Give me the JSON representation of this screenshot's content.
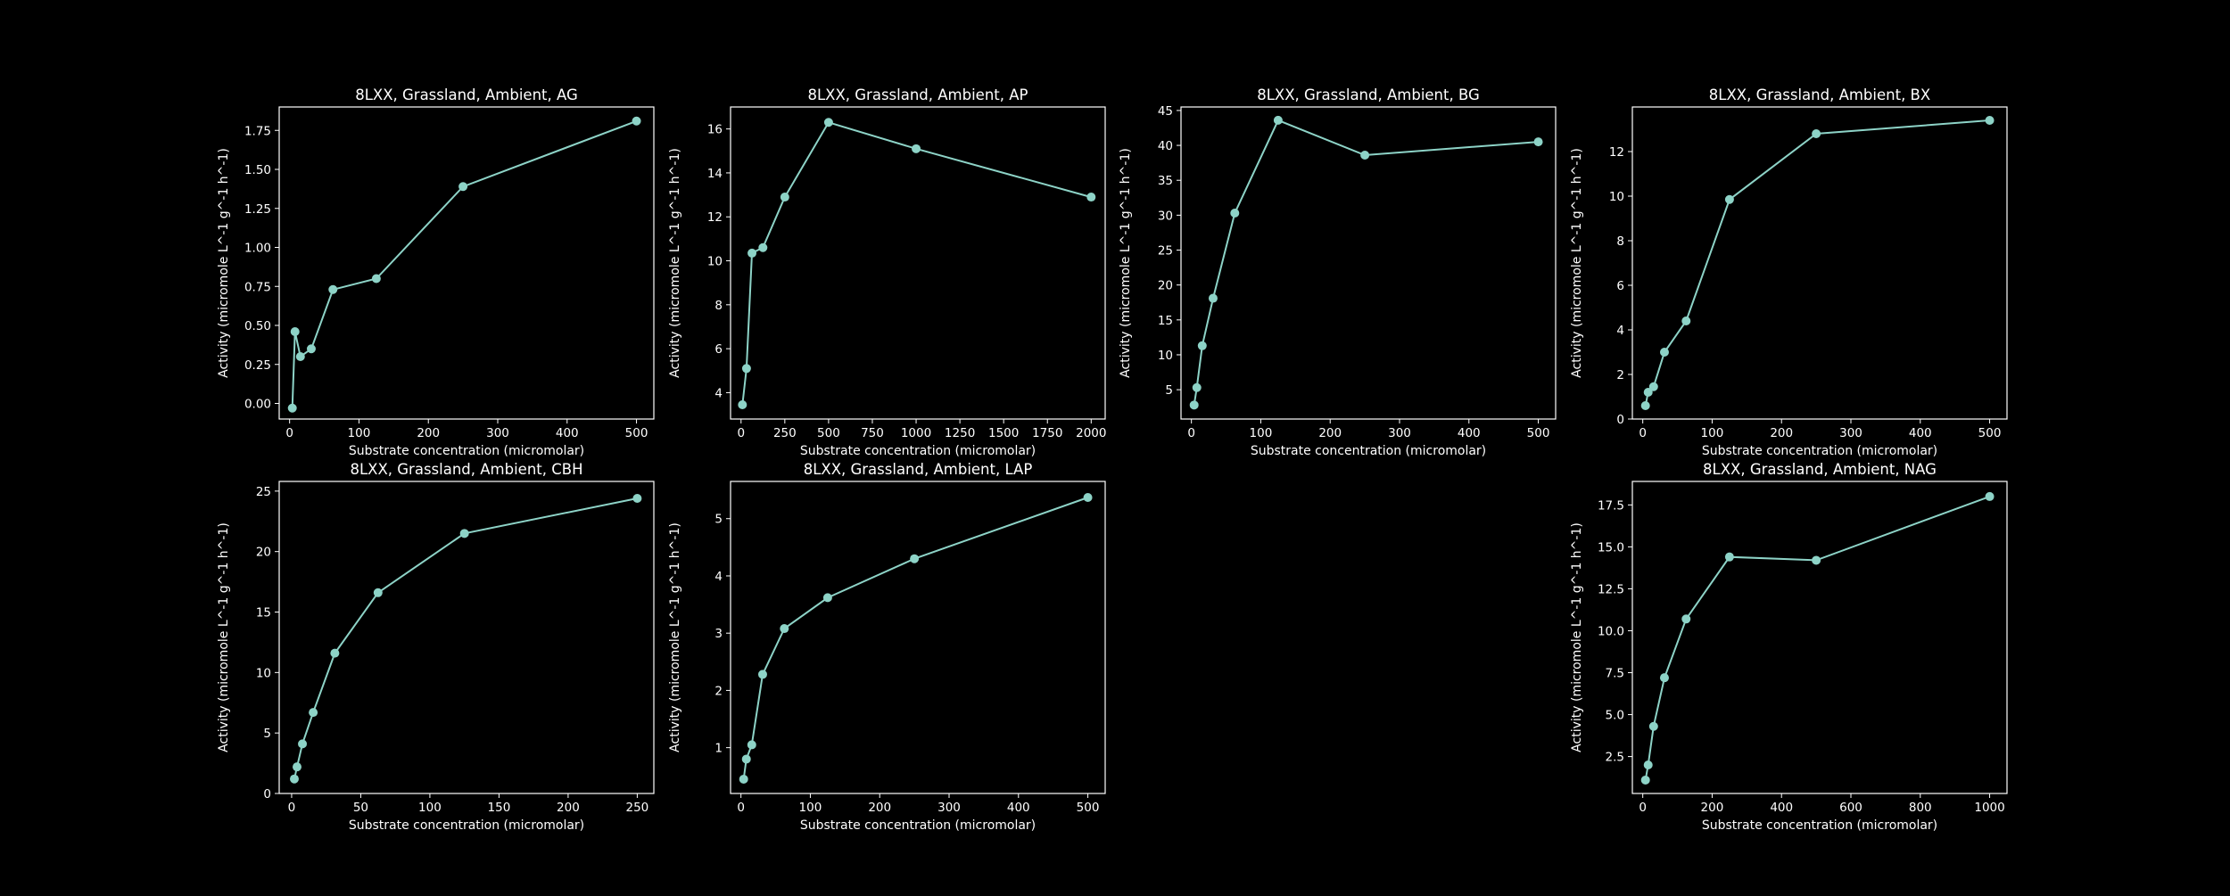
{
  "figure": {
    "background": "#000000",
    "line_color": "#8dd3c7",
    "text_color": "#ffffff"
  },
  "chart_data": [
    {
      "type": "line",
      "title": "8LXX, Grassland, Ambient, AG",
      "xlabel": "Substrate concentration (micromolar)",
      "ylabel": "Activity (micromole L^-1 g^-1 h^-1)",
      "xlim": [
        -15,
        525
      ],
      "ylim": [
        -0.1,
        1.9
      ],
      "xticks": [
        0,
        100,
        200,
        300,
        400,
        500
      ],
      "yticks": [
        0.0,
        0.25,
        0.5,
        0.75,
        1.0,
        1.25,
        1.5,
        1.75
      ],
      "ytick_labels": [
        "0.00",
        "0.25",
        "0.50",
        "0.75",
        "1.00",
        "1.25",
        "1.50",
        "1.75"
      ],
      "x": [
        3.9,
        7.8,
        15.6,
        31.25,
        62.5,
        125,
        250,
        500
      ],
      "y": [
        -0.03,
        0.46,
        0.3,
        0.35,
        0.73,
        0.8,
        1.39,
        1.81
      ]
    },
    {
      "type": "line",
      "title": "8LXX, Grassland, Ambient, AP",
      "xlabel": "Substrate concentration (micromolar)",
      "ylabel": "Activity (micromole L^-1 g^-1 h^-1)",
      "xlim": [
        -60,
        2080
      ],
      "ylim": [
        2.8,
        17.0
      ],
      "xticks": [
        0,
        250,
        500,
        750,
        1000,
        1250,
        1500,
        1750,
        2000
      ],
      "yticks": [
        4,
        6,
        8,
        10,
        12,
        14,
        16
      ],
      "x": [
        7.8,
        31.25,
        62.5,
        125,
        250,
        500,
        1000,
        2000
      ],
      "y": [
        3.45,
        5.1,
        10.35,
        10.6,
        12.9,
        16.3,
        15.1,
        12.9
      ]
    },
    {
      "type": "line",
      "title": "8LXX, Grassland, Ambient, BG",
      "xlabel": "Substrate concentration (micromolar)",
      "ylabel": "Activity (micromole L^-1 g^-1 h^-1)",
      "xlim": [
        -15,
        525
      ],
      "ylim": [
        0.8,
        45.5
      ],
      "xticks": [
        0,
        100,
        200,
        300,
        400,
        500
      ],
      "yticks": [
        5,
        10,
        15,
        20,
        25,
        30,
        35,
        40,
        45
      ],
      "x": [
        3.9,
        7.8,
        15.6,
        31.25,
        62.5,
        125,
        250,
        500
      ],
      "y": [
        2.8,
        5.3,
        11.3,
        18.1,
        30.3,
        43.6,
        38.6,
        40.5
      ]
    },
    {
      "type": "line",
      "title": "8LXX, Grassland, Ambient, BX",
      "xlabel": "Substrate concentration (micromolar)",
      "ylabel": "Activity (micromole L^-1 g^-1 h^-1)",
      "xlim": [
        -15,
        525
      ],
      "ylim": [
        0,
        14.0
      ],
      "xticks": [
        0,
        100,
        200,
        300,
        400,
        500
      ],
      "yticks": [
        0,
        2,
        4,
        6,
        8,
        10,
        12
      ],
      "x": [
        3.9,
        7.8,
        15.6,
        31.25,
        62.5,
        125,
        250,
        500
      ],
      "y": [
        0.6,
        1.2,
        1.45,
        3.0,
        4.4,
        9.85,
        12.8,
        13.4
      ]
    },
    {
      "type": "line",
      "title": "8LXX, Grassland, Ambient, CBH",
      "xlabel": "Substrate concentration (micromolar)",
      "ylabel": "Activity (micromole L^-1 g^-1 h^-1)",
      "xlim": [
        -9,
        262
      ],
      "ylim": [
        0,
        25.8
      ],
      "xticks": [
        0,
        50,
        100,
        150,
        200,
        250
      ],
      "yticks": [
        0,
        5,
        10,
        15,
        20,
        25
      ],
      "x": [
        1.95,
        3.9,
        7.8,
        15.6,
        31.25,
        62.5,
        125,
        250
      ],
      "y": [
        1.2,
        2.2,
        4.1,
        6.7,
        11.6,
        16.6,
        21.5,
        24.4
      ]
    },
    {
      "type": "line",
      "title": "8LXX, Grassland, Ambient, LAP",
      "xlabel": "Substrate concentration (micromolar)",
      "ylabel": "Activity (micromole L^-1 g^-1 h^-1)",
      "xlim": [
        -15,
        525
      ],
      "ylim": [
        0.2,
        5.65
      ],
      "xticks": [
        0,
        100,
        200,
        300,
        400,
        500
      ],
      "yticks": [
        1,
        2,
        3,
        4,
        5
      ],
      "x": [
        3.9,
        7.8,
        15.6,
        31.25,
        62.5,
        125,
        250,
        500
      ],
      "y": [
        0.45,
        0.8,
        1.05,
        2.28,
        3.08,
        3.62,
        4.3,
        5.37
      ]
    },
    {
      "type": "line",
      "title": "8LXX, Grassland, Ambient, NAG",
      "xlabel": "Substrate concentration (micromolar)",
      "ylabel": "Activity (micromole L^-1 g^-1 h^-1)",
      "xlim": [
        -30,
        1050
      ],
      "ylim": [
        0.3,
        18.9
      ],
      "xticks": [
        0,
        200,
        400,
        600,
        800,
        1000
      ],
      "yticks": [
        2.5,
        5.0,
        7.5,
        10.0,
        12.5,
        15.0,
        17.5
      ],
      "ytick_labels": [
        "2.5",
        "5.0",
        "7.5",
        "10.0",
        "12.5",
        "15.0",
        "17.5"
      ],
      "x": [
        7.8,
        15.6,
        31.25,
        62.5,
        125,
        250,
        500,
        1000
      ],
      "y": [
        1.1,
        2.0,
        4.3,
        7.2,
        10.7,
        14.4,
        14.2,
        18.0
      ]
    }
  ]
}
